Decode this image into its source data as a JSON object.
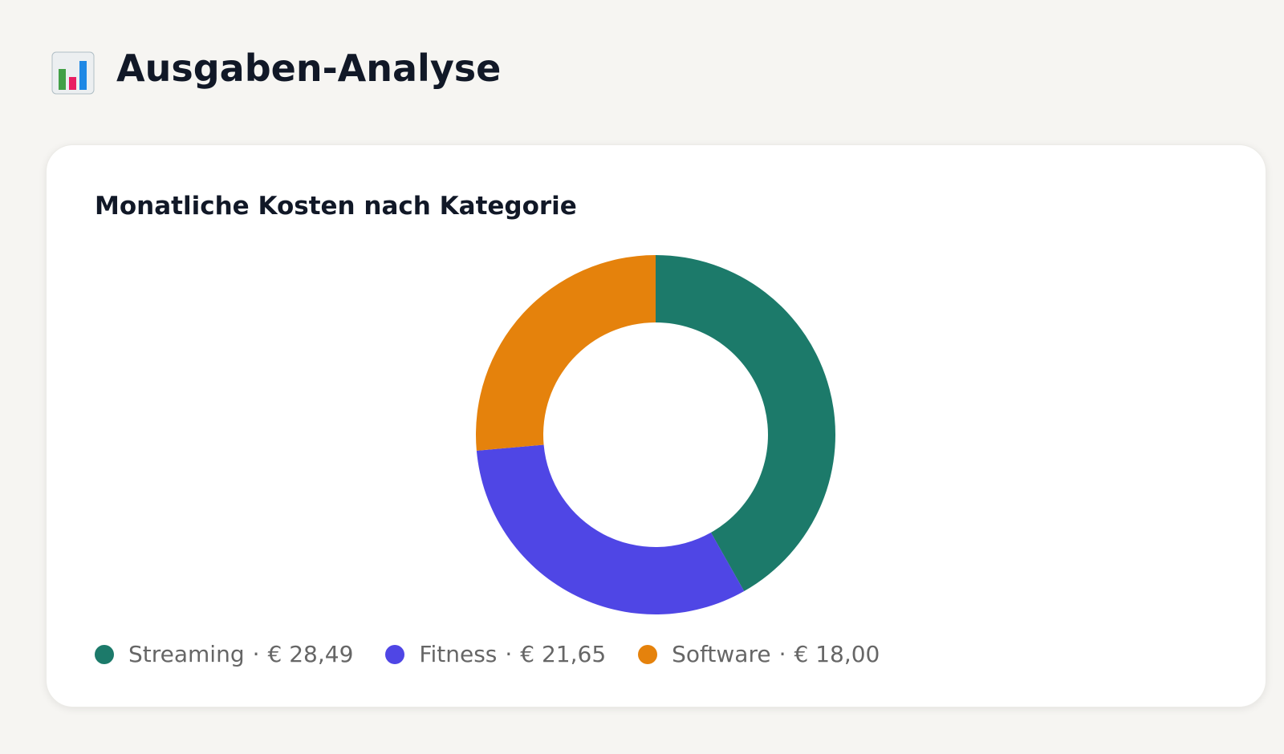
{
  "header": {
    "title": "Ausgaben-Analyse"
  },
  "chart_data": {
    "type": "donut",
    "title": "Monatliche Kosten nach Kategorie",
    "categories": [
      "Streaming",
      "Fitness",
      "Software"
    ],
    "values": [
      28.49,
      21.65,
      18.0
    ],
    "value_labels": [
      "€ 28,49",
      "€ 21,65",
      "€ 18,00"
    ],
    "legend_separator": "·",
    "colors": [
      "#1c7a6a",
      "#4f46e5",
      "#e5820c"
    ]
  }
}
